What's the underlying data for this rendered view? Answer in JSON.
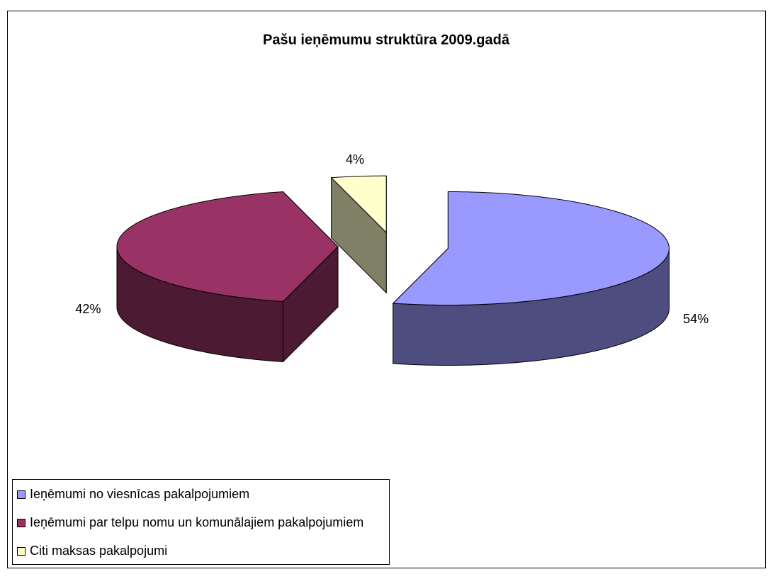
{
  "chart_data": {
    "type": "pie",
    "title": "Pašu ieņēmumu struktūra 2009.gadā",
    "categories": [
      "Ieņēmumi no viesnīcas pakalpojumiem",
      "Ieņēmumi par telpu nomu un komunālajiem pakalpojumiem",
      "Citi maksas pakalpojumi"
    ],
    "values": [
      54,
      42,
      4
    ],
    "value_labels": [
      "54%",
      "42%",
      "4%"
    ],
    "colors": [
      "#9999ff",
      "#993366",
      "#ffffcc"
    ],
    "legend": "bottom-left"
  }
}
